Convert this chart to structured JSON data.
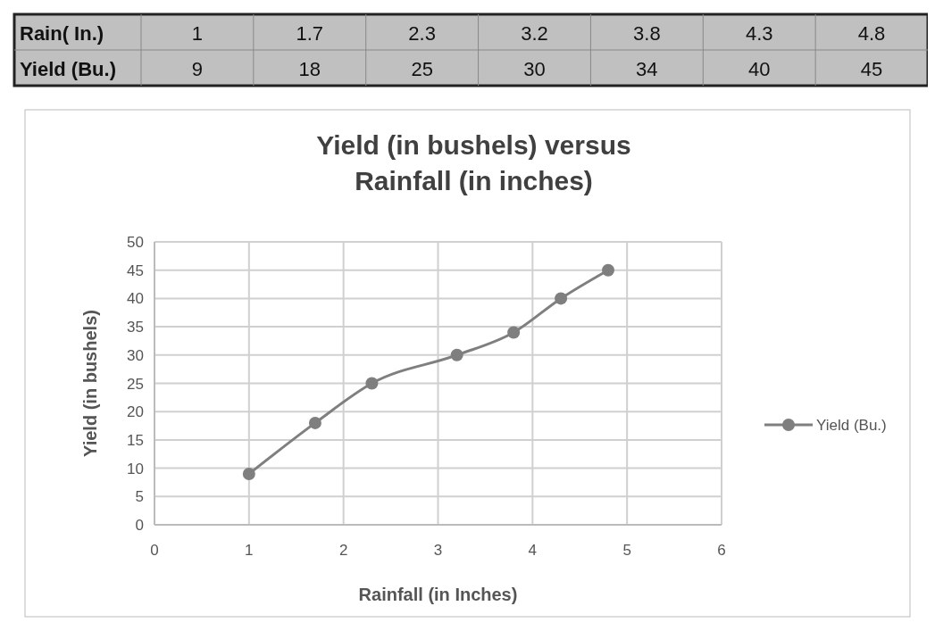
{
  "chart_data": {
    "type": "line",
    "title": "Yield (in bushels) versus Rainfall (in inches)",
    "xlabel": "Rainfall (in Inches)",
    "ylabel": "Yield (in bushels)",
    "x": [
      1,
      1.7,
      2.3,
      3.2,
      3.8,
      4.3,
      4.8
    ],
    "series": [
      {
        "name": "Yield (Bu.)",
        "color": "#7f7f7f",
        "values": [
          9,
          18,
          25,
          30,
          34,
          40,
          45
        ]
      }
    ],
    "annotations": [
      "Rain( In.)",
      "1",
      "1.7",
      "2.3",
      "3.2",
      "3.8",
      "4.3",
      "4.8",
      "Yield (Bu.)",
      "9",
      "18",
      "25",
      "30",
      "34",
      "40",
      "45"
    ],
    "xlim": [
      0,
      6
    ],
    "xticks": [
      0,
      1,
      2,
      3,
      4,
      5,
      6
    ],
    "ylim": [
      0,
      50
    ],
    "yticks": [
      0,
      5,
      10,
      15,
      20,
      25,
      30,
      35,
      40,
      45,
      50
    ],
    "grid": true,
    "legend": "right",
    "marker": "circle",
    "line_style": "solid"
  }
}
